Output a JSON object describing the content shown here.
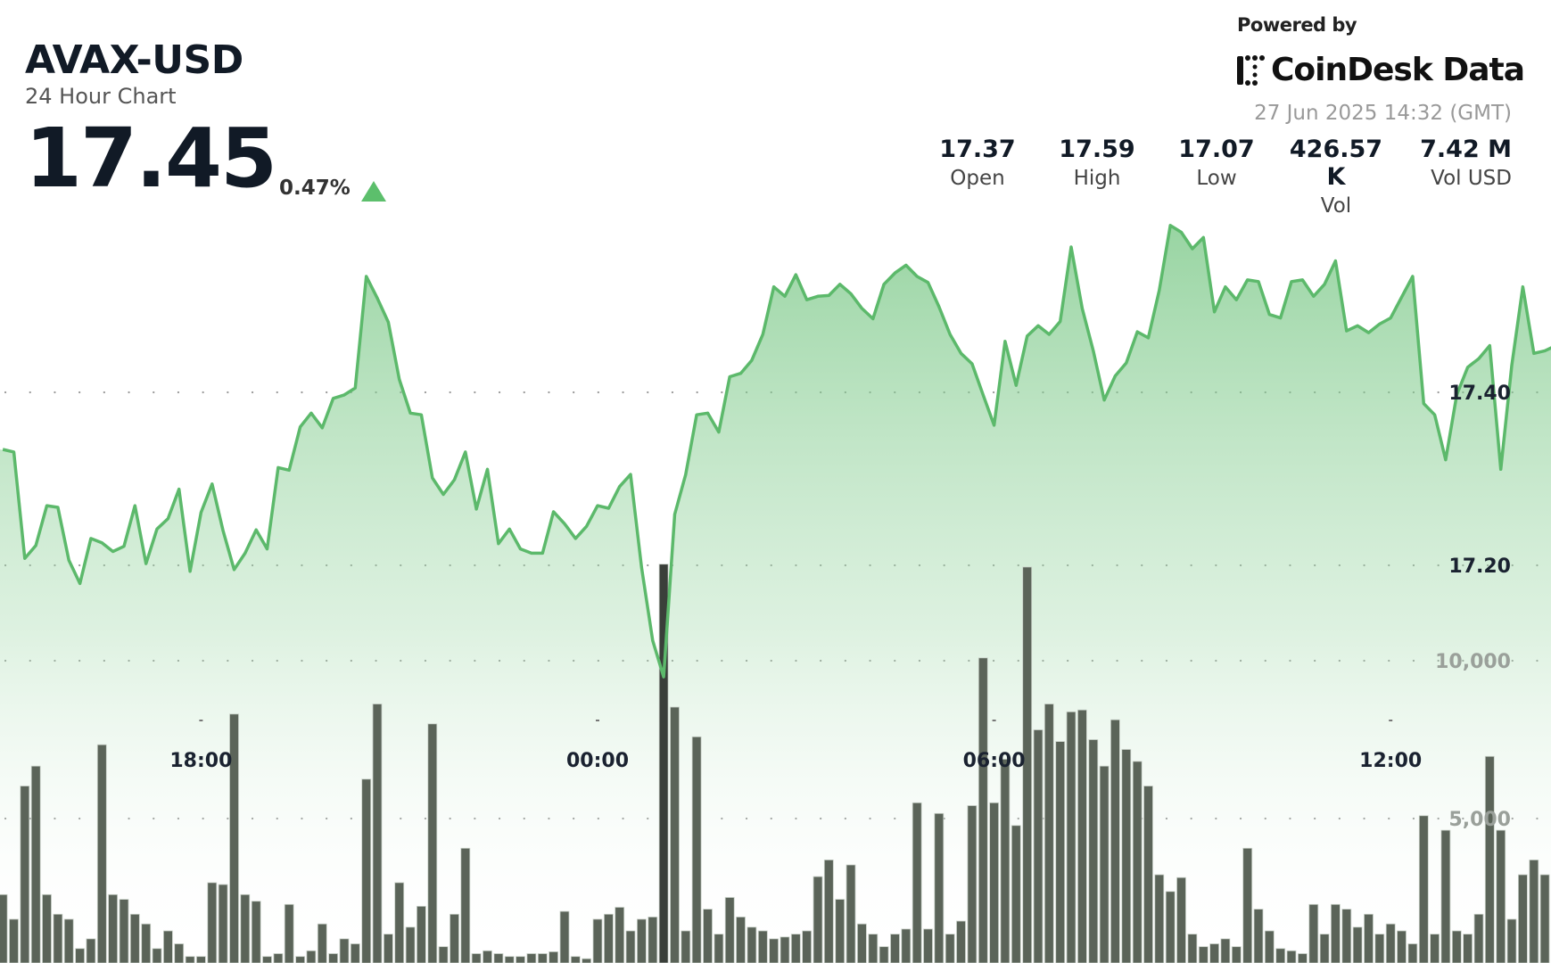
{
  "header": {
    "symbol": "AVAX-USD",
    "subtitle": "24 Hour Chart",
    "price": "17.45",
    "change_pct": "0.47%",
    "change_direction": "up",
    "powered_by": "Powered by",
    "brand": "CoinDesk Data",
    "timestamp": "27 Jun 2025 14:32 (GMT)"
  },
  "stats": [
    {
      "value": "17.37",
      "label": "Open"
    },
    {
      "value": "17.59",
      "label": "High"
    },
    {
      "value": "17.07",
      "label": "Low"
    },
    {
      "value": "426.57 K",
      "label": "Vol"
    },
    {
      "value": "7.42 M",
      "label": "Vol USD"
    }
  ],
  "colors": {
    "line": "#5cb96b",
    "fill_top": "#7fcb8a",
    "volume_bar": "#5b6459",
    "up": "#5cbf6c"
  },
  "chart_data": {
    "type": "area+bar",
    "title": "AVAX-USD",
    "grid": true,
    "price_ticks": [
      {
        "value": 17.4,
        "label": "17.40"
      },
      {
        "value": 17.2,
        "label": "17.20"
      }
    ],
    "volume_ticks": [
      {
        "value": 10000,
        "label": "10,000"
      },
      {
        "value": 5000,
        "label": "5,000"
      }
    ],
    "x_ticks": [
      "18:00",
      "00:00",
      "06:00",
      "12:00"
    ],
    "x": [
      "15:00",
      "15:10",
      "15:20",
      "15:30",
      "15:40",
      "15:50",
      "16:00",
      "16:10",
      "16:20",
      "16:30",
      "16:40",
      "16:50",
      "17:00",
      "17:10",
      "17:20",
      "17:30",
      "17:40",
      "17:50",
      "18:00",
      "18:10",
      "18:20",
      "18:30",
      "18:40",
      "18:50",
      "19:00",
      "19:10",
      "19:20",
      "19:30",
      "19:40",
      "19:50",
      "20:00",
      "20:10",
      "20:20",
      "20:30",
      "20:40",
      "20:50",
      "21:00",
      "21:10",
      "21:20",
      "21:30",
      "21:40",
      "21:50",
      "22:00",
      "22:10",
      "22:20",
      "22:30",
      "22:40",
      "22:50",
      "23:00",
      "23:10",
      "23:20",
      "23:30",
      "23:40",
      "23:50",
      "00:00",
      "00:10",
      "00:20",
      "00:30",
      "00:40",
      "00:50",
      "01:00",
      "01:10",
      "01:20",
      "01:30",
      "01:40",
      "01:50",
      "02:00",
      "02:10",
      "02:20",
      "02:30",
      "02:40",
      "02:50",
      "03:00",
      "03:10",
      "03:20",
      "03:30",
      "03:40",
      "03:50",
      "04:00",
      "04:10",
      "04:20",
      "04:30",
      "04:40",
      "04:50",
      "05:00",
      "05:10",
      "05:20",
      "05:30",
      "05:40",
      "05:50",
      "06:00",
      "06:10",
      "06:20",
      "06:30",
      "06:40",
      "06:50",
      "07:00",
      "07:10",
      "07:20",
      "07:30",
      "07:40",
      "07:50",
      "08:00",
      "08:10",
      "08:20",
      "08:30",
      "08:40",
      "08:50",
      "09:00",
      "09:10",
      "09:20",
      "09:30",
      "09:40",
      "09:50",
      "10:00",
      "10:10",
      "10:20",
      "10:30",
      "10:40",
      "10:50",
      "11:00",
      "11:10",
      "11:20",
      "11:30",
      "11:40",
      "11:50",
      "12:00",
      "12:10",
      "12:20",
      "12:30",
      "12:40",
      "12:50",
      "13:00",
      "13:10",
      "13:20",
      "13:30",
      "13:40",
      "13:50",
      "14:00",
      "14:10",
      "14:20",
      "14:30"
    ],
    "series": [
      {
        "type": "area",
        "values": [
          17.334,
          17.331,
          17.208,
          17.223,
          17.269,
          17.267,
          17.206,
          17.179,
          17.231,
          17.226,
          17.216,
          17.222,
          17.269,
          17.202,
          17.242,
          17.254,
          17.288,
          17.193,
          17.261,
          17.294,
          17.24,
          17.195,
          17.214,
          17.241,
          17.219,
          17.313,
          17.31,
          17.36,
          17.376,
          17.359,
          17.393,
          17.397,
          17.405,
          17.534,
          17.509,
          17.481,
          17.415,
          17.376,
          17.374,
          17.301,
          17.282,
          17.299,
          17.331,
          17.265,
          17.311,
          17.225,
          17.242,
          17.219,
          17.214,
          17.214,
          17.262,
          17.248,
          17.231,
          17.245,
          17.269,
          17.266,
          17.291,
          17.305,
          17.197,
          17.113,
          17.071,
          17.259,
          17.305,
          17.374,
          17.376,
          17.354,
          17.418,
          17.422,
          17.437,
          17.467,
          17.522,
          17.511,
          17.536,
          17.507,
          17.511,
          17.512,
          17.525,
          17.514,
          17.497,
          17.485,
          17.525,
          17.538,
          17.547,
          17.534,
          17.527,
          17.499,
          17.467,
          17.445,
          17.433,
          17.397,
          17.362,
          17.459,
          17.408,
          17.465,
          17.477,
          17.467,
          17.482,
          17.568,
          17.497,
          17.448,
          17.391,
          17.419,
          17.434,
          17.47,
          17.463,
          17.518,
          17.593,
          17.585,
          17.566,
          17.579,
          17.493,
          17.522,
          17.507,
          17.53,
          17.528,
          17.49,
          17.486,
          17.528,
          17.53,
          17.511,
          17.525,
          17.552,
          17.471,
          17.477,
          17.469,
          17.479,
          17.486,
          17.51,
          17.534,
          17.387,
          17.374,
          17.322,
          17.397,
          17.429,
          17.439,
          17.454,
          17.311,
          17.431,
          17.522,
          17.445,
          17.448,
          17.454
        ]
      },
      {
        "type": "bar",
        "values": [
          2590,
          1810,
          6030,
          6660,
          2590,
          1970,
          1810,
          880,
          1190,
          7340,
          2590,
          2440,
          1970,
          1660,
          880,
          1440,
          1030,
          630,
          630,
          2970,
          2910,
          8310,
          2590,
          2380,
          630,
          720,
          2280,
          630,
          810,
          1660,
          720,
          1190,
          1030,
          6250,
          8630,
          1340,
          2970,
          1560,
          2220,
          8000,
          940,
          1970,
          4060,
          720,
          810,
          720,
          630,
          630,
          720,
          720,
          780,
          2060,
          630,
          560,
          1810,
          1970,
          2190,
          1440,
          1810,
          1880,
          13060,
          8530,
          1440,
          7590,
          2130,
          1340,
          2500,
          1880,
          1560,
          1440,
          1190,
          1250,
          1340,
          1440,
          3160,
          3690,
          2440,
          3530,
          1660,
          1340,
          940,
          1340,
          1500,
          5500,
          1500,
          5160,
          1340,
          1750,
          5410,
          10090,
          5500,
          6880,
          4780,
          12970,
          7810,
          8630,
          7440,
          8380,
          8440,
          7500,
          6660,
          8130,
          7190,
          6810,
          6030,
          3220,
          2690,
          3130,
          1340,
          940,
          1030,
          1190,
          940,
          4060,
          2130,
          1440,
          880,
          810,
          720,
          2280,
          1340,
          2280,
          2130,
          1560,
          1970,
          1340,
          1660,
          1440,
          1030,
          5090,
          1340,
          4630,
          1440,
          1340,
          1970,
          6970,
          4630,
          1810,
          3220,
          3690,
          3220,
          3380
        ]
      }
    ]
  }
}
